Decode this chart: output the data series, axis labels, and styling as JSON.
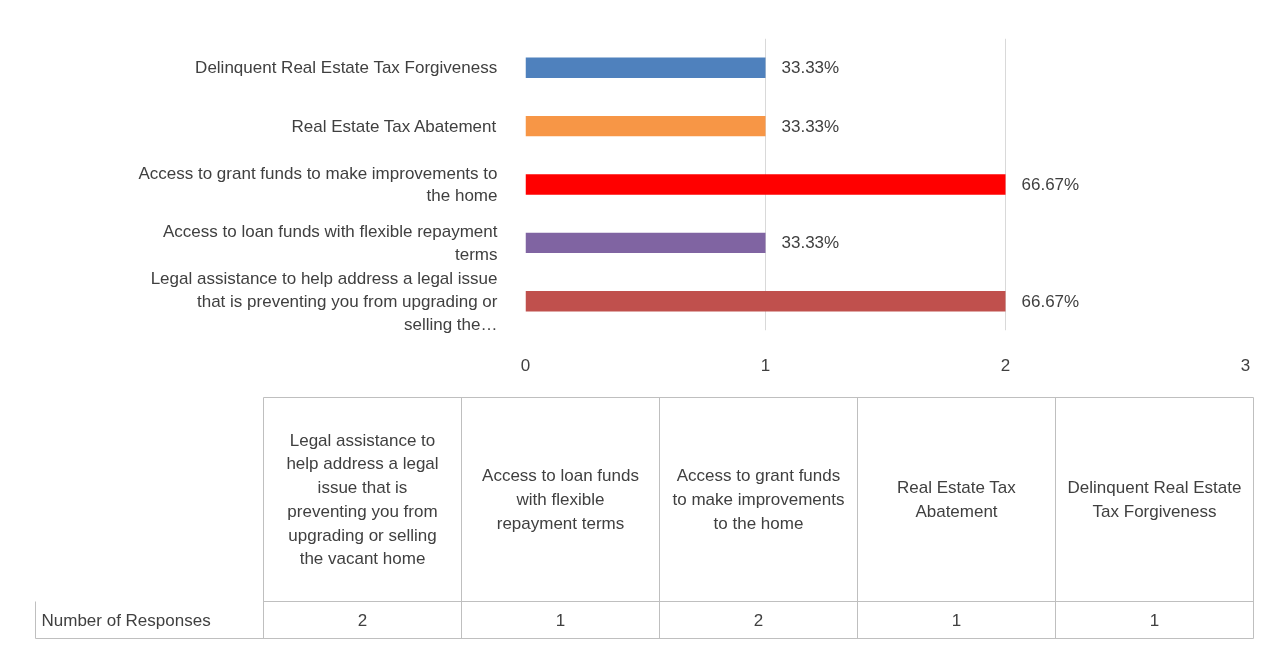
{
  "chart_data": {
    "type": "bar",
    "orientation": "horizontal",
    "categories": [
      "Delinquent Real Estate Tax Forgiveness",
      "Real Estate Tax Abatement",
      "Access to grant funds to make improvements to the home",
      "Access to loan funds with flexible repayment terms",
      "Legal assistance to help address a legal issue that is preventing you from upgrading or selling the…"
    ],
    "values": [
      1,
      1,
      2,
      1,
      2
    ],
    "colors": [
      "#4f81bd",
      "#f79646",
      "#ff0000",
      "#8064a2",
      "#c0504d"
    ],
    "xlim": [
      0,
      3
    ],
    "xticks": [
      0,
      1,
      2,
      3
    ],
    "grid": "x",
    "annotations": [
      "Number of Responses",
      "Legal assistance to help address a legal issue that is preventing you from upgrading or selling the vacant home",
      "Access to loan funds with flexible repayment terms",
      "Access to grant funds to make improvements to the home",
      "Real Estate Tax Abatement",
      "Delinquent Real Estate Tax Forgiveness",
      "2",
      "1",
      "2",
      "1",
      "1",
      "33.33%",
      "33.33%",
      "66.67%",
      "33.33%",
      "66.67%"
    ]
  }
}
